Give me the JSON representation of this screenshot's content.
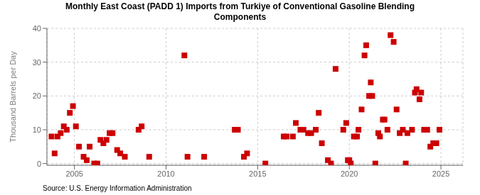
{
  "chart_data": {
    "type": "scatter",
    "title": "Monthly East Coast (PADD 1) Imports from Turkiye of Conventional Gasoline Blending\nComponents",
    "ylabel": "Thousand Barrels per Day",
    "annotations": [
      "Source: U.S. Energy Information Administration"
    ],
    "color": "#cc0000",
    "marker": "square",
    "grid": true,
    "xlim": [
      2003.5,
      2026.2
    ],
    "ylim": [
      -0.5,
      40
    ],
    "xticks": [
      2005,
      2010,
      2015,
      2020,
      2025
    ],
    "yticks": [
      0,
      10,
      20,
      30,
      40
    ],
    "x": [
      2003.75,
      2003.92,
      2004.08,
      2004.25,
      2004.42,
      2004.58,
      2004.75,
      2004.92,
      2005.08,
      2005.25,
      2005.5,
      2005.67,
      2005.83,
      2006.08,
      2006.25,
      2006.42,
      2006.58,
      2006.75,
      2006.92,
      2007.08,
      2007.33,
      2007.5,
      2007.75,
      2008.5,
      2008.67,
      2009.08,
      2011.0,
      2011.17,
      2012.08,
      2013.75,
      2013.92,
      2014.25,
      2014.42,
      2015.42,
      2016.42,
      2016.58,
      2016.92,
      2017.08,
      2017.33,
      2017.5,
      2017.75,
      2017.92,
      2018.17,
      2018.33,
      2018.5,
      2018.83,
      2019.0,
      2019.25,
      2019.67,
      2019.83,
      2019.92,
      2020.0,
      2020.08,
      2020.25,
      2020.42,
      2020.5,
      2020.67,
      2020.83,
      2020.92,
      2021.08,
      2021.17,
      2021.25,
      2021.42,
      2021.58,
      2021.67,
      2021.83,
      2021.92,
      2022.08,
      2022.25,
      2022.42,
      2022.58,
      2022.75,
      2022.92,
      2023.08,
      2023.17,
      2023.42,
      2023.58,
      2023.67,
      2023.83,
      2023.92,
      2024.08,
      2024.25,
      2024.42,
      2024.58,
      2024.75,
      2024.92
    ],
    "values": [
      8,
      3,
      8,
      9,
      11,
      10,
      15,
      17,
      11,
      5,
      2,
      1,
      5,
      0,
      0,
      7,
      6,
      7,
      9,
      9,
      4,
      3,
      2,
      10,
      11,
      2,
      32,
      2,
      2,
      10,
      10,
      2,
      3,
      0,
      8,
      8,
      8,
      12,
      10,
      10,
      9,
      9,
      10,
      15,
      6,
      1,
      0,
      28,
      10,
      12,
      1,
      1,
      0,
      8,
      8,
      10,
      16,
      32,
      35,
      20,
      24,
      20,
      0,
      9,
      8,
      13,
      13,
      10,
      38,
      36,
      16,
      9,
      10,
      0,
      9,
      10,
      21,
      22,
      19,
      21,
      10,
      10,
      5,
      6,
      6,
      10
    ]
  }
}
